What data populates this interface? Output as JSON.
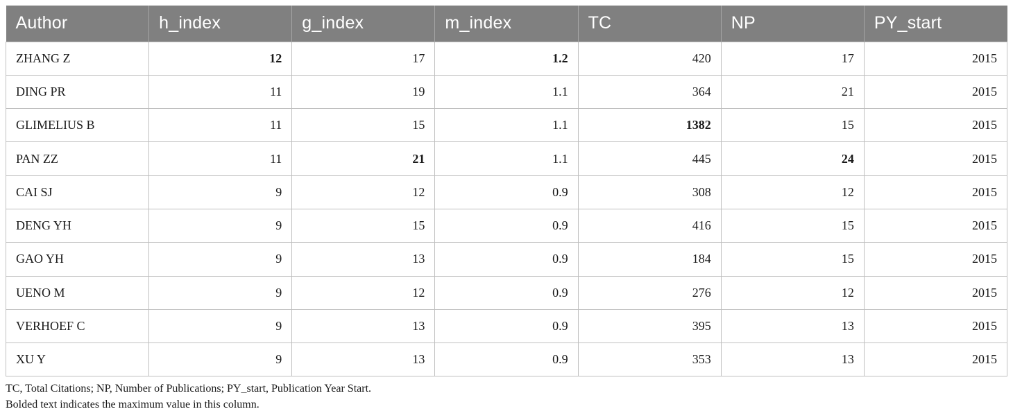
{
  "table": {
    "headers": [
      "Author",
      "h_index",
      "g_index",
      "m_index",
      "TC",
      "NP",
      "PY_start"
    ],
    "rows": [
      {
        "author": "ZHANG Z",
        "h_index": "12",
        "g_index": "17",
        "m_index": "1.2",
        "tc": "420",
        "np": "17",
        "py_start": "2015"
      },
      {
        "author": "DING PR",
        "h_index": "11",
        "g_index": "19",
        "m_index": "1.1",
        "tc": "364",
        "np": "21",
        "py_start": "2015"
      },
      {
        "author": "GLIMELIUS B",
        "h_index": "11",
        "g_index": "15",
        "m_index": "1.1",
        "tc": "1382",
        "np": "15",
        "py_start": "2015"
      },
      {
        "author": "PAN ZZ",
        "h_index": "11",
        "g_index": "21",
        "m_index": "1.1",
        "tc": "445",
        "np": "24",
        "py_start": "2015"
      },
      {
        "author": "CAI SJ",
        "h_index": "9",
        "g_index": "12",
        "m_index": "0.9",
        "tc": "308",
        "np": "12",
        "py_start": "2015"
      },
      {
        "author": "DENG YH",
        "h_index": "9",
        "g_index": "15",
        "m_index": "0.9",
        "tc": "416",
        "np": "15",
        "py_start": "2015"
      },
      {
        "author": "GAO YH",
        "h_index": "9",
        "g_index": "13",
        "m_index": "0.9",
        "tc": "184",
        "np": "15",
        "py_start": "2015"
      },
      {
        "author": "UENO M",
        "h_index": "9",
        "g_index": "12",
        "m_index": "0.9",
        "tc": "276",
        "np": "12",
        "py_start": "2015"
      },
      {
        "author": "VERHOEF C",
        "h_index": "9",
        "g_index": "13",
        "m_index": "0.9",
        "tc": "395",
        "np": "13",
        "py_start": "2015"
      },
      {
        "author": "XU Y",
        "h_index": "9",
        "g_index": "13",
        "m_index": "0.9",
        "tc": "353",
        "np": "13",
        "py_start": "2015"
      }
    ],
    "bold_cells": [
      "0.h_index",
      "0.m_index",
      "2.tc",
      "3.g_index",
      "3.np"
    ]
  },
  "notes": {
    "abbreviations": "TC, Total Citations; NP, Number of Publications; PY_start, Publication Year Start.",
    "bold_note": "Bolded text indicates the maximum value in this column."
  },
  "colors": {
    "header_bg": "#808080",
    "header_text": "#ffffff",
    "grid": "#bfbfbf"
  }
}
